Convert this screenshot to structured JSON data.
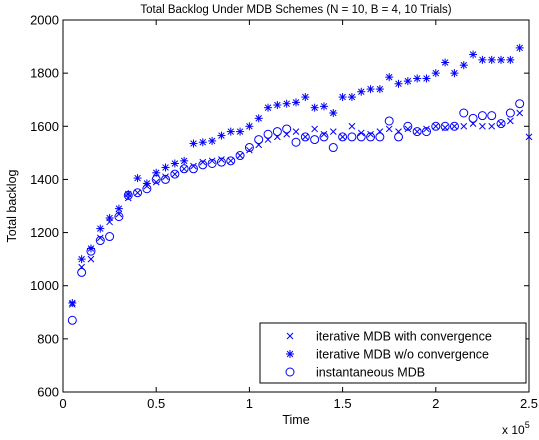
{
  "chart_data": {
    "type": "scatter",
    "title": "Total Backlog Under MDB Schemes (N = 10, B = 4, 10 Trials)",
    "xlabel": "Time",
    "ylabel": "Total backlog",
    "x_multiplier": "x 10",
    "x_multiplier_exp": "5",
    "xlim": [
      0,
      2.5
    ],
    "ylim": [
      600,
      2000
    ],
    "xticks": [
      "0",
      "0.5",
      "1",
      "1.5",
      "2",
      "2.5"
    ],
    "yticks": [
      "600",
      "800",
      "1000",
      "1200",
      "1400",
      "1600",
      "1800",
      "2000"
    ],
    "legend_position": "bottom-right",
    "grid": false,
    "series": [
      {
        "name": "iterative MDB with convergence",
        "marker": "x",
        "color": "#0000ff",
        "x": [
          0.05,
          0.1,
          0.15,
          0.2,
          0.25,
          0.3,
          0.35,
          0.4,
          0.45,
          0.5,
          0.55,
          0.6,
          0.65,
          0.7,
          0.75,
          0.8,
          0.85,
          0.9,
          0.95,
          1.0,
          1.05,
          1.1,
          1.15,
          1.2,
          1.25,
          1.3,
          1.35,
          1.4,
          1.45,
          1.5,
          1.55,
          1.6,
          1.65,
          1.7,
          1.75,
          1.8,
          1.85,
          1.9,
          1.95,
          2.0,
          2.05,
          2.1,
          2.15,
          2.2,
          2.25,
          2.3,
          2.35,
          2.4,
          2.45,
          2.5
        ],
        "y": [
          930,
          1070,
          1100,
          1180,
          1240,
          1270,
          1330,
          1350,
          1375,
          1390,
          1410,
          1420,
          1440,
          1450,
          1465,
          1470,
          1475,
          1470,
          1490,
          1510,
          1530,
          1550,
          1560,
          1570,
          1580,
          1560,
          1590,
          1570,
          1580,
          1560,
          1600,
          1575,
          1570,
          1580,
          1590,
          1580,
          1590,
          1580,
          1590,
          1600,
          1595,
          1600,
          1600,
          1610,
          1600,
          1600,
          1610,
          1620,
          1650,
          1560
        ]
      },
      {
        "name": "iterative MDB w/o convergence",
        "marker": "*",
        "color": "#0000ff",
        "x": [
          0.05,
          0.1,
          0.15,
          0.2,
          0.25,
          0.3,
          0.35,
          0.4,
          0.45,
          0.5,
          0.55,
          0.6,
          0.65,
          0.7,
          0.75,
          0.8,
          0.85,
          0.9,
          0.95,
          1.0,
          1.05,
          1.1,
          1.15,
          1.2,
          1.25,
          1.3,
          1.35,
          1.4,
          1.45,
          1.5,
          1.55,
          1.6,
          1.65,
          1.7,
          1.75,
          1.8,
          1.85,
          1.9,
          1.95,
          2.0,
          2.05,
          2.1,
          2.15,
          2.2,
          2.25,
          2.3,
          2.35,
          2.4,
          2.45
        ],
        "y": [
          935,
          1100,
          1140,
          1215,
          1255,
          1290,
          1345,
          1405,
          1385,
          1425,
          1445,
          1460,
          1470,
          1535,
          1540,
          1545,
          1565,
          1580,
          1580,
          1600,
          1630,
          1670,
          1680,
          1685,
          1690,
          1710,
          1670,
          1675,
          1650,
          1710,
          1710,
          1730,
          1740,
          1740,
          1785,
          1760,
          1770,
          1780,
          1780,
          1800,
          1840,
          1800,
          1830,
          1870,
          1850,
          1850,
          1850,
          1850,
          1895
        ]
      },
      {
        "name": "instantaneous MDB",
        "marker": "o",
        "color": "#0000ff",
        "x": [
          0.05,
          0.1,
          0.15,
          0.2,
          0.25,
          0.3,
          0.35,
          0.4,
          0.45,
          0.5,
          0.55,
          0.6,
          0.65,
          0.7,
          0.75,
          0.8,
          0.85,
          0.9,
          0.95,
          1.0,
          1.05,
          1.1,
          1.15,
          1.2,
          1.25,
          1.3,
          1.35,
          1.4,
          1.45,
          1.5,
          1.55,
          1.6,
          1.65,
          1.7,
          1.75,
          1.8,
          1.85,
          1.9,
          1.95,
          2.0,
          2.05,
          2.1,
          2.15,
          2.2,
          2.25,
          2.3,
          2.35,
          2.4,
          2.45
        ],
        "y": [
          870,
          1050,
          1130,
          1170,
          1185,
          1260,
          1340,
          1350,
          1365,
          1400,
          1400,
          1420,
          1440,
          1440,
          1455,
          1460,
          1465,
          1470,
          1490,
          1520,
          1550,
          1570,
          1580,
          1590,
          1540,
          1560,
          1550,
          1560,
          1520,
          1560,
          1560,
          1560,
          1560,
          1560,
          1620,
          1560,
          1600,
          1580,
          1580,
          1600,
          1600,
          1600,
          1650,
          1630,
          1640,
          1640,
          1610,
          1650,
          1685
        ]
      }
    ]
  }
}
